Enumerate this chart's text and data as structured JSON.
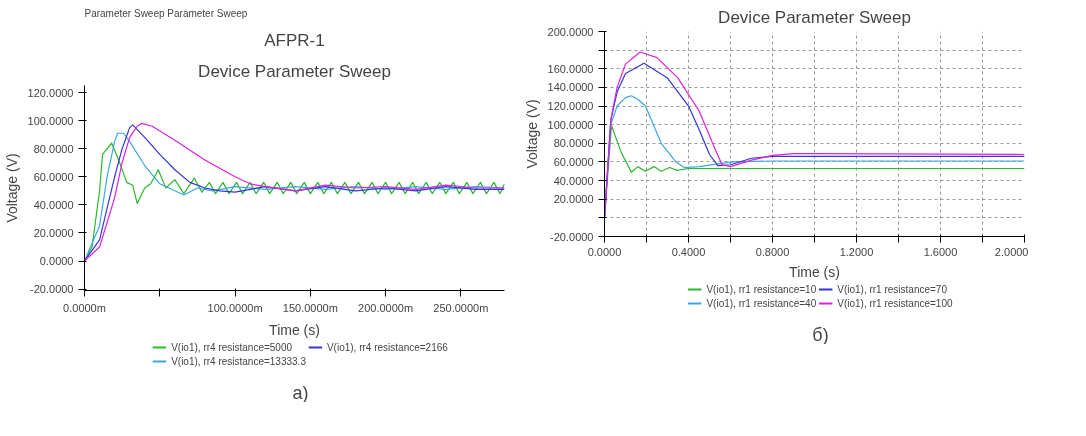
{
  "chart_data": [
    {
      "type": "line",
      "title": "AFPR-1",
      "subtitle": "Device Parameter Sweep",
      "xlabel": "Time (s)",
      "ylabel": "Voltage (V)",
      "annotations": [
        "Parameter Sweep",
        "Parameter Sweep",
        "а)"
      ],
      "xlim": [
        0,
        279
      ],
      "xticks": [
        {
          "value": 0,
          "label": "0.0000m"
        },
        {
          "value": 50,
          "label": null
        },
        {
          "value": 100,
          "label": "100.0000m"
        },
        {
          "value": 150,
          "label": "150.0000m"
        },
        {
          "value": 200,
          "label": "200.0000m"
        },
        {
          "value": 250,
          "label": "250.0000m"
        }
      ],
      "ylim": [
        -21,
        125
      ],
      "yticks": [
        {
          "value": -20,
          "label": "-20.0000"
        },
        {
          "value": 0,
          "label": "0.0000"
        },
        {
          "value": 20,
          "label": "20.0000"
        },
        {
          "value": 40,
          "label": "40.0000"
        },
        {
          "value": 60,
          "label": "60.0000"
        },
        {
          "value": 80,
          "label": "80.0000"
        },
        {
          "value": 100,
          "label": "100.0000"
        },
        {
          "value": 120,
          "label": "120.0000"
        }
      ],
      "grid": false,
      "legend": "bottom",
      "series": [
        {
          "name": "V(io1), rr4 resistance=5000",
          "color": "#2cb82c",
          "x": [
            0,
            5,
            10,
            12,
            18,
            23,
            28,
            32,
            35,
            40,
            44,
            49,
            54,
            60,
            66,
            73,
            78,
            83,
            87,
            92,
            96,
            101,
            105,
            110,
            114,
            119,
            123,
            128,
            132,
            137,
            141,
            146,
            150,
            155,
            159,
            164,
            168,
            173,
            177,
            182,
            186,
            191,
            195,
            200,
            204,
            209,
            213,
            218,
            222,
            227,
            231,
            236,
            240,
            245,
            249,
            254,
            258,
            263,
            267,
            272,
            276,
            279
          ],
          "values": [
            0,
            10,
            50,
            76,
            84,
            71,
            56,
            54,
            41,
            52,
            55,
            65,
            52,
            58,
            48,
            59,
            49,
            56,
            48,
            56,
            48,
            56,
            48,
            56,
            48,
            56,
            48,
            56,
            48,
            56,
            48,
            56,
            48,
            56,
            48,
            56,
            48,
            56,
            48,
            56,
            48,
            56,
            48,
            56,
            48,
            56,
            48,
            56,
            48,
            56,
            48,
            56,
            48,
            56,
            48,
            56,
            48,
            56,
            48,
            56,
            48,
            55
          ]
        },
        {
          "name": "V(io1), rr4 resistance=13333.3",
          "color": "#3aa8e0",
          "x": [
            0,
            10,
            15,
            20,
            22,
            26,
            30,
            40,
            50,
            60,
            66,
            75,
            85,
            100,
            120,
            140,
            160,
            180,
            200,
            220,
            240,
            260,
            279
          ],
          "values": [
            0,
            25,
            60,
            85,
            91,
            91,
            85,
            68,
            55,
            50,
            47,
            52,
            50,
            53,
            51,
            53,
            51,
            53,
            51,
            53,
            51,
            53,
            52
          ]
        },
        {
          "name": "V(io1), rr4 resistance=2166",
          "color": "#3535d8",
          "x": [
            0,
            10,
            20,
            25,
            30,
            32,
            40,
            50,
            60,
            70,
            80,
            90,
            100,
            120,
            140,
            160,
            180,
            200,
            220,
            240,
            260,
            279
          ],
          "values": [
            0,
            15,
            60,
            80,
            95,
            97,
            88,
            76,
            65,
            56,
            52,
            50,
            49,
            53,
            50,
            53,
            50,
            52,
            50,
            53,
            51,
            51
          ]
        },
        {
          "color": "#dd22dd",
          "x": [
            0,
            10,
            20,
            25,
            30,
            35,
            38,
            45,
            60,
            80,
            100,
            110,
            120,
            140,
            160,
            180,
            200,
            220,
            240,
            260,
            279
          ],
          "values": [
            0,
            10,
            45,
            70,
            88,
            96,
            98,
            96,
            86,
            72,
            60,
            55,
            53,
            50,
            54,
            52,
            53,
            51,
            54,
            52,
            52
          ]
        }
      ]
    },
    {
      "type": "line",
      "title": "Device Parameter Sweep",
      "xlabel": "Time (s)",
      "ylabel": "Voltage (V)",
      "annotations": [
        "б)"
      ],
      "xlim": [
        0,
        2
      ],
      "xticks": [
        {
          "value": 0,
          "label": "0.0000"
        },
        {
          "value": 0.2,
          "label": null
        },
        {
          "value": 0.4,
          "label": "0.4000"
        },
        {
          "value": 0.6,
          "label": null
        },
        {
          "value": 0.8,
          "label": "0.8000"
        },
        {
          "value": 1.0,
          "label": null
        },
        {
          "value": 1.2,
          "label": "1.2000"
        },
        {
          "value": 1.4,
          "label": null
        },
        {
          "value": 1.6,
          "label": "1.6000"
        },
        {
          "value": 1.8,
          "label": null
        },
        {
          "value": 2.0,
          "label": "2.0000"
        }
      ],
      "ylim": [
        -20,
        200
      ],
      "yticks": [
        {
          "value": -20,
          "label": "-20.0000"
        },
        {
          "value": 0,
          "label": null
        },
        {
          "value": 20,
          "label": "20.0000"
        },
        {
          "value": 40,
          "label": "40.0000"
        },
        {
          "value": 60,
          "label": "60.0000"
        },
        {
          "value": 80,
          "label": "80.0000"
        },
        {
          "value": 100,
          "label": "100.0000"
        },
        {
          "value": 120,
          "label": "120.0000"
        },
        {
          "value": 140,
          "label": "140.0000"
        },
        {
          "value": 160,
          "label": "160.0000"
        },
        {
          "value": 180,
          "label": null
        },
        {
          "value": 200,
          "label": "200.0000"
        }
      ],
      "grid": true,
      "legend": "bottom",
      "series": [
        {
          "name": "V(io1), rr1 resistance=10",
          "color": "#2cb82c",
          "x": [
            0,
            0.033,
            0.08,
            0.128,
            0.158,
            0.195,
            0.236,
            0.27,
            0.31,
            0.345,
            0.4,
            0.6,
            1.0,
            1.5,
            2.0
          ],
          "values": [
            0,
            99,
            70,
            49,
            55,
            50,
            55,
            50,
            54,
            51,
            53,
            53,
            53,
            53,
            53
          ]
        },
        {
          "name": "V(io1), rr1 resistance=40",
          "color": "#3aa8e0",
          "x": [
            0,
            0.03,
            0.06,
            0.1,
            0.128,
            0.16,
            0.195,
            0.27,
            0.34,
            0.38,
            0.45,
            0.61,
            0.8,
            1.2,
            2.0
          ],
          "values": [
            0,
            100,
            120,
            129,
            131,
            127,
            120,
            80,
            60,
            54,
            55,
            60,
            61,
            61,
            61
          ]
        },
        {
          "name": "V(io1), rr1 resistance=70",
          "color": "#3535d8",
          "x": [
            0,
            0.03,
            0.06,
            0.1,
            0.188,
            0.3,
            0.4,
            0.45,
            0.5,
            0.54,
            0.6,
            0.7,
            0.8,
            1.2,
            2.0
          ],
          "values": [
            0,
            105,
            135,
            155,
            166,
            150,
            120,
            95,
            68,
            56,
            57,
            64,
            66,
            66,
            66
          ]
        },
        {
          "name": "V(io1), rr1 resistance=100",
          "color": "#dd22dd",
          "x": [
            0,
            0.03,
            0.06,
            0.1,
            0.17,
            0.25,
            0.35,
            0.45,
            0.53,
            0.56,
            0.6,
            0.7,
            0.8,
            0.9,
            1.0,
            2.0
          ],
          "values": [
            0,
            105,
            140,
            165,
            178,
            172,
            150,
            115,
            72,
            57,
            55,
            62,
            67,
            69,
            69,
            68
          ]
        }
      ]
    }
  ]
}
